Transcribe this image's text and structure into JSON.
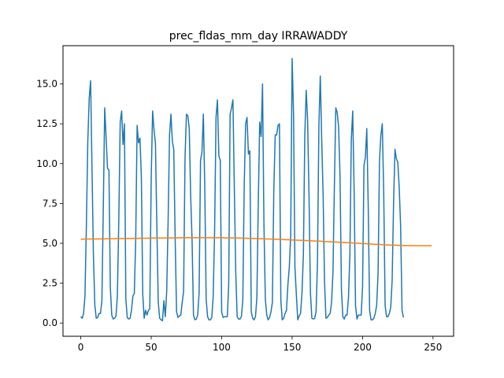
{
  "chart_data": {
    "type": "line",
    "title": "prec_fldas_mm_day IRRAWADDY",
    "xlabel": "",
    "ylabel": "",
    "xlim": [
      -12.6,
      264.6
    ],
    "ylim": [
      -0.83,
      17.4
    ],
    "x_ticks": [
      0,
      50,
      100,
      150,
      200,
      250
    ],
    "y_ticks": [
      0.0,
      2.5,
      5.0,
      7.5,
      10.0,
      12.5,
      15.0
    ],
    "x_tick_labels": [
      "0",
      "50",
      "100",
      "150",
      "200",
      "250"
    ],
    "y_tick_labels": [
      "0.0",
      "2.5",
      "5.0",
      "7.5",
      "10.0",
      "12.5",
      "15.0"
    ],
    "grid": false,
    "legend": "none",
    "series": [
      {
        "color": "#1f77b4",
        "values": [
          0.4,
          0.3,
          0.6,
          1.7,
          6.2,
          11.4,
          14.1,
          15.2,
          9.6,
          4.2,
          1.1,
          0.3,
          0.35,
          0.6,
          0.6,
          1.4,
          7.2,
          13.5,
          11.6,
          9.7,
          9.6,
          2.2,
          0.5,
          0.25,
          0.3,
          0.45,
          1.7,
          6.5,
          12.6,
          13.3,
          11.2,
          12.5,
          1.5,
          0.35,
          0.25,
          0.3,
          0.8,
          1.7,
          1.85,
          5.2,
          12.4,
          11.3,
          11.6,
          9.2,
          1.8,
          0.3,
          0.8,
          0.5,
          0.8,
          0.9,
          9.1,
          13.3,
          12.1,
          11.3,
          6.1,
          1.3,
          0.3,
          0.2,
          0.15,
          1.4,
          0.4,
          2.0,
          6.4,
          11.8,
          13.1,
          11.4,
          10.9,
          5.3,
          0.7,
          0.35,
          0.45,
          0.5,
          1.3,
          2.0,
          10.4,
          13.1,
          13.0,
          12.2,
          8.0,
          5.2,
          0.5,
          0.2,
          0.25,
          0.5,
          1.9,
          10.2,
          10.7,
          13.1,
          8.6,
          1.5,
          0.4,
          0.2,
          0.2,
          0.35,
          1.7,
          5.8,
          12.9,
          14.0,
          10.5,
          10.2,
          0.7,
          0.35,
          0.4,
          0.4,
          0.4,
          2.4,
          13.1,
          13.5,
          14.0,
          8.4,
          3.2,
          0.4,
          0.25,
          0.25,
          0.4,
          1.4,
          8.6,
          12.5,
          12.9,
          10.6,
          10.8,
          0.7,
          0.3,
          0.2,
          0.4,
          1.6,
          7.6,
          12.6,
          11.7,
          15.0,
          6.2,
          1.5,
          0.5,
          0.2,
          0.35,
          0.7,
          1.3,
          8.3,
          11.8,
          11.8,
          12.4,
          12.5,
          1.4,
          0.2,
          0.3,
          0.6,
          0.8,
          2.4,
          3.5,
          5.5,
          16.6,
          13.1,
          3.5,
          1.8,
          0.2,
          0.45,
          0.6,
          1.9,
          4.3,
          11.8,
          14.6,
          12.7,
          8.0,
          1.9,
          0.3,
          0.25,
          0.3,
          0.7,
          3.8,
          12.4,
          15.5,
          11.5,
          8.0,
          2.6,
          0.3,
          0.35,
          0.5,
          0.6,
          1.3,
          3.2,
          8.6,
          13.5,
          13.2,
          12.3,
          9.2,
          2.1,
          0.4,
          0.25,
          0.5,
          0.5,
          1.6,
          4.3,
          11.5,
          13.3,
          8.4,
          1.1,
          0.25,
          0.5,
          0.5,
          0.5,
          2.3,
          9.9,
          10.4,
          12.2,
          7.4,
          0.8,
          0.2,
          0.2,
          0.3,
          0.6,
          1.1,
          3.1,
          10.2,
          11.8,
          12.5,
          8.2,
          1.1,
          0.4,
          0.4,
          0.6,
          1.0,
          2.7,
          7.5,
          10.9,
          10.3,
          10.1,
          8.5,
          6.1,
          0.8,
          0.35
        ]
      },
      {
        "color": "#ff7f0e",
        "values": [
          5.25,
          5.26,
          5.26,
          5.27,
          5.27,
          5.27,
          5.27,
          5.27,
          5.27,
          5.27,
          5.27,
          5.27,
          5.28,
          5.28,
          5.28,
          5.28,
          5.28,
          5.28,
          5.29,
          5.29,
          5.29,
          5.29,
          5.29,
          5.29,
          5.29,
          5.3,
          5.3,
          5.3,
          5.3,
          5.3,
          5.3,
          5.3,
          5.3,
          5.31,
          5.31,
          5.31,
          5.31,
          5.31,
          5.31,
          5.31,
          5.31,
          5.32,
          5.32,
          5.32,
          5.32,
          5.32,
          5.32,
          5.32,
          5.32,
          5.32,
          5.33,
          5.33,
          5.33,
          5.33,
          5.33,
          5.33,
          5.33,
          5.33,
          5.33,
          5.34,
          5.34,
          5.34,
          5.34,
          5.34,
          5.34,
          5.34,
          5.34,
          5.34,
          5.34,
          5.34,
          5.35,
          5.35,
          5.35,
          5.35,
          5.35,
          5.35,
          5.35,
          5.35,
          5.35,
          5.35,
          5.35,
          5.35,
          5.35,
          5.35,
          5.35,
          5.35,
          5.35,
          5.35,
          5.35,
          5.35,
          5.35,
          5.35,
          5.35,
          5.35,
          5.35,
          5.35,
          5.35,
          5.35,
          5.35,
          5.35,
          5.35,
          5.35,
          5.34,
          5.34,
          5.34,
          5.34,
          5.34,
          5.34,
          5.34,
          5.34,
          5.33,
          5.33,
          5.33,
          5.33,
          5.33,
          5.32,
          5.32,
          5.32,
          5.32,
          5.31,
          5.31,
          5.31,
          5.31,
          5.3,
          5.3,
          5.3,
          5.3,
          5.29,
          5.29,
          5.29,
          5.28,
          5.28,
          5.28,
          5.27,
          5.27,
          5.27,
          5.26,
          5.26,
          5.26,
          5.25,
          5.25,
          5.25,
          5.24,
          5.24,
          5.24,
          5.23,
          5.23,
          5.23,
          5.22,
          5.22,
          5.21,
          5.21,
          5.21,
          5.2,
          5.2,
          5.19,
          5.19,
          5.19,
          5.18,
          5.18,
          5.17,
          5.17,
          5.17,
          5.16,
          5.16,
          5.15,
          5.15,
          5.14,
          5.14,
          5.14,
          5.13,
          5.13,
          5.12,
          5.12,
          5.11,
          5.11,
          5.1,
          5.1,
          5.1,
          5.09,
          5.09,
          5.08,
          5.08,
          5.07,
          5.07,
          5.06,
          5.06,
          5.05,
          5.05,
          5.04,
          5.04,
          5.03,
          5.03,
          5.02,
          5.02,
          5.01,
          5.01,
          5.0,
          5.0,
          4.99,
          4.99,
          4.98,
          4.98,
          4.97,
          4.97,
          4.96,
          4.96,
          4.95,
          4.95,
          4.94,
          4.94,
          4.93,
          4.93,
          4.92,
          4.92,
          4.91,
          4.91,
          4.9,
          4.9,
          4.89,
          4.89,
          4.89,
          4.88,
          4.88,
          4.88,
          4.87,
          4.87,
          4.87,
          4.87,
          4.86,
          4.86,
          4.86,
          4.86,
          4.86,
          4.86,
          4.86,
          4.85,
          4.85,
          4.85,
          4.85,
          4.85,
          4.85,
          4.85,
          4.85,
          4.85,
          4.85,
          4.85,
          4.85,
          4.85,
          4.85
        ]
      }
    ]
  }
}
